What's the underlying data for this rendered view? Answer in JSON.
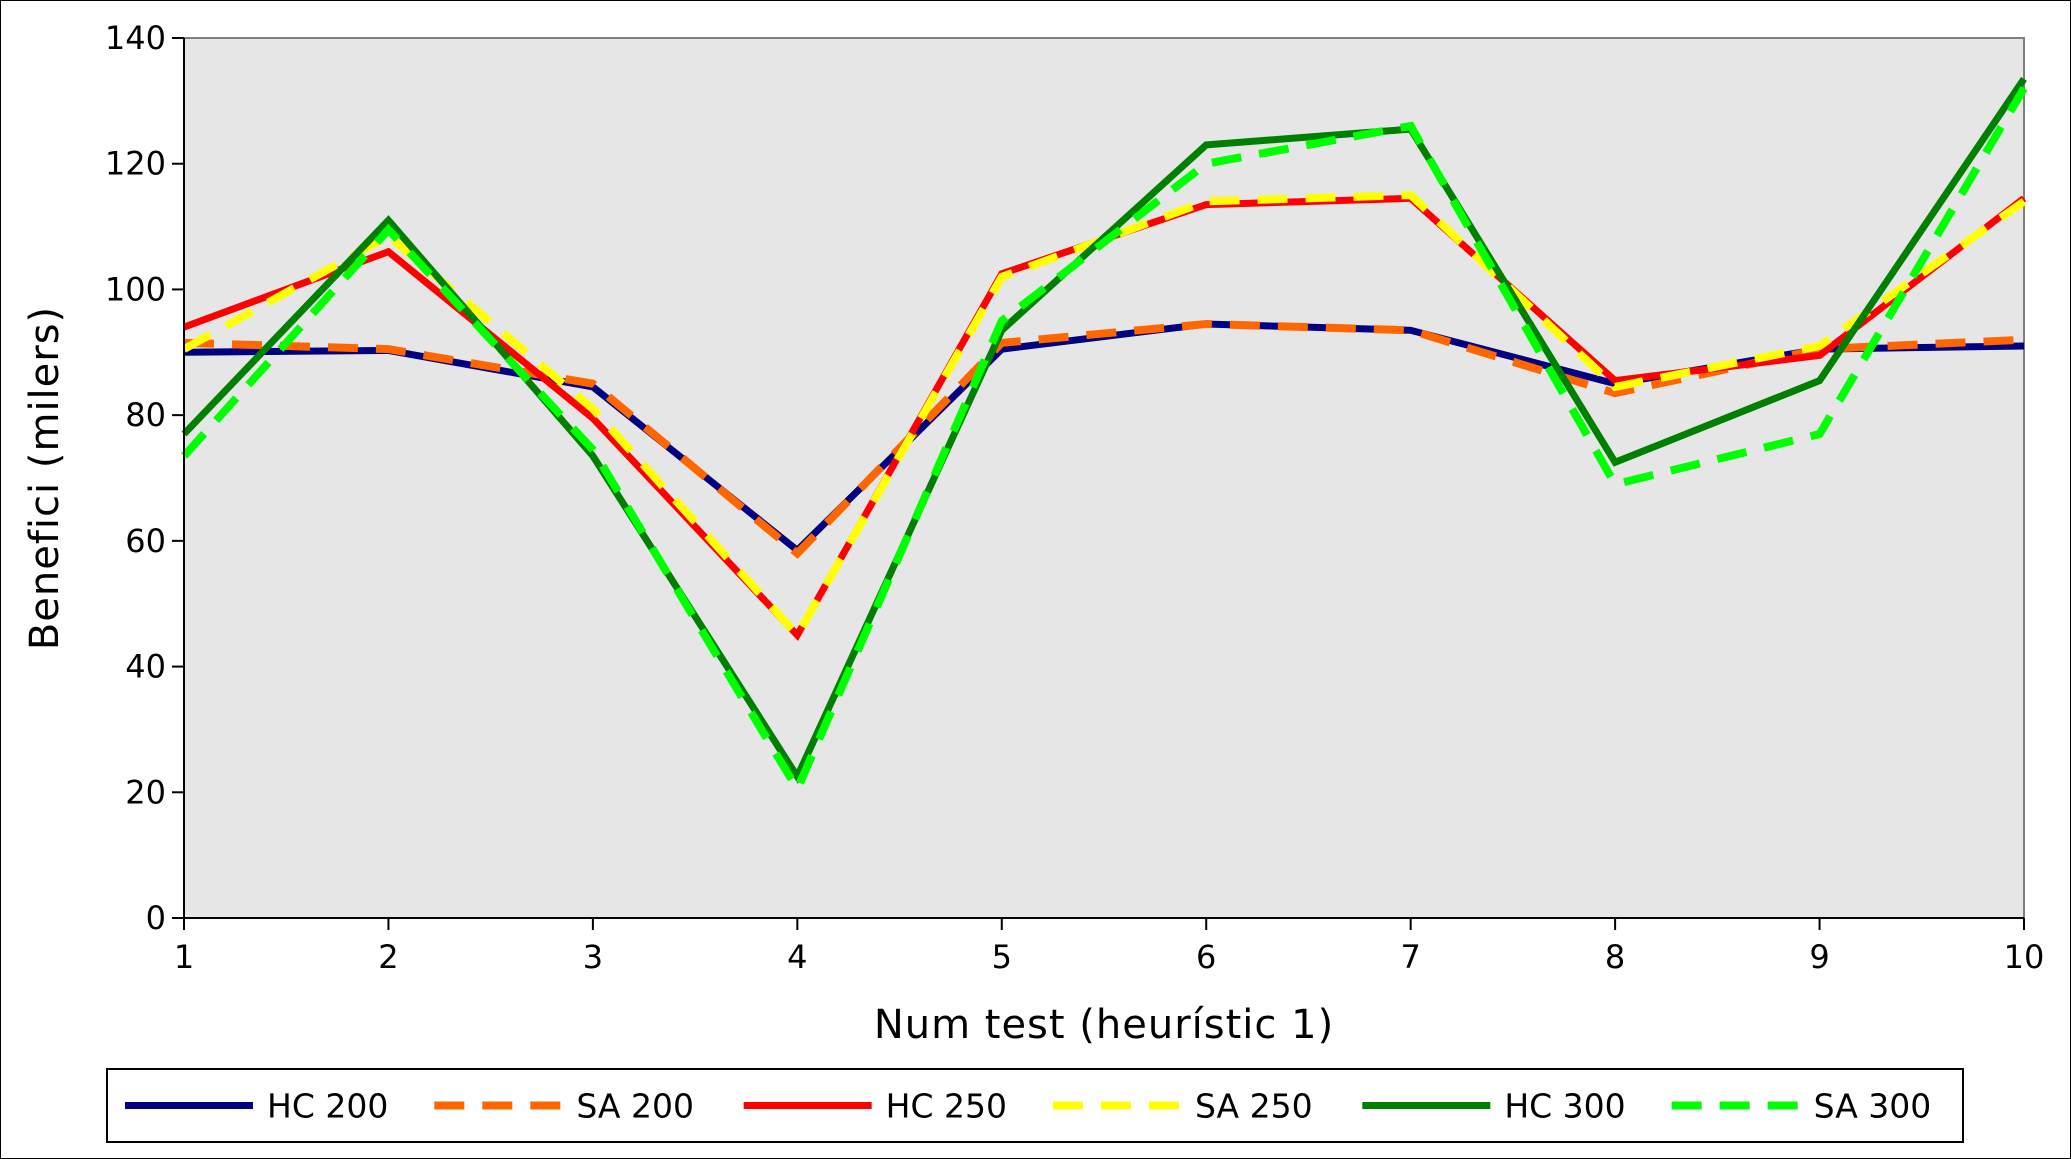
{
  "chart_data": {
    "type": "line",
    "xlabel": "Num test (heurístic 1)",
    "ylabel": "Benefici (milers)",
    "x": [
      1,
      2,
      3,
      4,
      5,
      6,
      7,
      8,
      9,
      10
    ],
    "xlim": [
      1,
      10
    ],
    "ylim": [
      0,
      140
    ],
    "yticks": [
      0,
      20,
      40,
      60,
      80,
      100,
      120,
      140
    ],
    "xticks": [
      1,
      2,
      3,
      4,
      5,
      6,
      7,
      8,
      9,
      10
    ],
    "grid": false,
    "plot_background": "#e6e6e6",
    "legend_position": "bottom",
    "series": [
      {
        "name": "HC 200",
        "color": "#000080",
        "dash": "solid",
        "values": [
          90,
          90.3,
          84.5,
          58.5,
          90.5,
          94.5,
          93.5,
          85,
          90.5,
          91
        ]
      },
      {
        "name": "SA 200",
        "color": "#ff6600",
        "dash": "dashed",
        "values": [
          91.5,
          90.5,
          85,
          58,
          91.5,
          94.5,
          93.5,
          83.5,
          90.5,
          92
        ]
      },
      {
        "name": "HC 250",
        "color": "#ff0000",
        "dash": "solid",
        "values": [
          94,
          106,
          79.5,
          45,
          102.5,
          113.5,
          114.5,
          85.5,
          89.5,
          114.5
        ]
      },
      {
        "name": "SA 250",
        "color": "#ffff00",
        "dash": "dashed",
        "values": [
          90.5,
          108.5,
          81,
          45,
          102,
          114,
          115,
          84.5,
          91,
          114
        ]
      },
      {
        "name": "HC 300",
        "color": "#008000",
        "dash": "solid",
        "values": [
          77,
          111,
          73.5,
          22.5,
          93.5,
          123,
          125.5,
          72.5,
          85.5,
          133.5
        ]
      },
      {
        "name": "SA 300",
        "color": "#00ff00",
        "dash": "dashed",
        "values": [
          73.5,
          109.5,
          74.5,
          20.5,
          95,
          120,
          126,
          69,
          77,
          132
        ]
      }
    ]
  }
}
